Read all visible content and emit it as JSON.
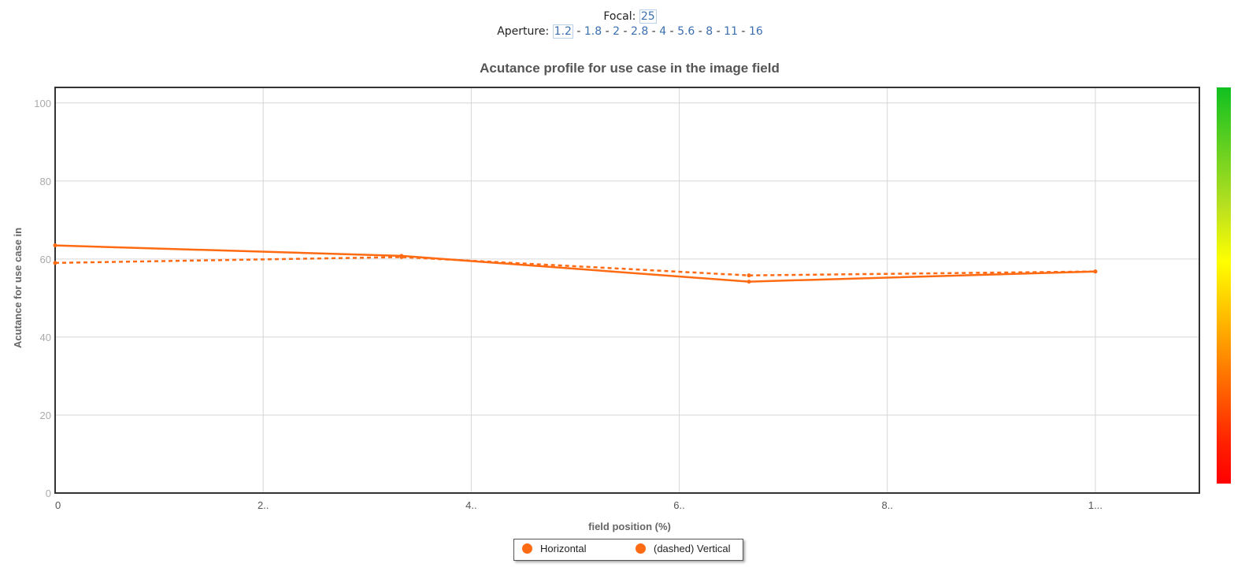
{
  "selectors": {
    "focal": {
      "label": "Focal:",
      "options": [
        "25"
      ],
      "selected": "25"
    },
    "aperture": {
      "label": "Aperture:",
      "options": [
        "1.2",
        "1.8",
        "2",
        "2.8",
        "4",
        "5.6",
        "8",
        "11",
        "16"
      ],
      "selected": "1.2"
    }
  },
  "colors": {
    "series": "#ff6a13",
    "grid": "#d6d6d6",
    "axis_text": "#aaaaaa",
    "link": "#3b6fb0",
    "colorbar": [
      "#10c020",
      "#ffff00",
      "#ff9a00",
      "#ff0000"
    ]
  },
  "chart_data": {
    "type": "line",
    "title": "Acutance profile for use case in the image field",
    "xlabel": "field position (%)",
    "ylabel": "Acutance for use case in",
    "xlim": [
      0,
      110
    ],
    "ylim": [
      0,
      104
    ],
    "x_ticks": [
      0,
      20,
      40,
      60,
      80,
      100
    ],
    "x_tick_labels": [
      "0",
      "2..",
      "4..",
      "6..",
      "8..",
      "1..."
    ],
    "y_ticks": [
      0,
      20,
      40,
      60,
      80,
      100
    ],
    "y_tick_labels": [
      "0",
      "20",
      "40",
      "60",
      "80",
      "100"
    ],
    "grid": true,
    "legend_position": "bottom-center",
    "series": [
      {
        "name": "Horizontal",
        "dashed": false,
        "x": [
          0,
          33.3,
          66.7,
          100
        ],
        "y": [
          63.5,
          60.8,
          54.2,
          56.8
        ]
      },
      {
        "name": "(dashed) Vertical",
        "dashed": true,
        "x": [
          0,
          33.3,
          66.7,
          100
        ],
        "y": [
          59.0,
          60.5,
          55.8,
          56.8
        ]
      }
    ]
  }
}
